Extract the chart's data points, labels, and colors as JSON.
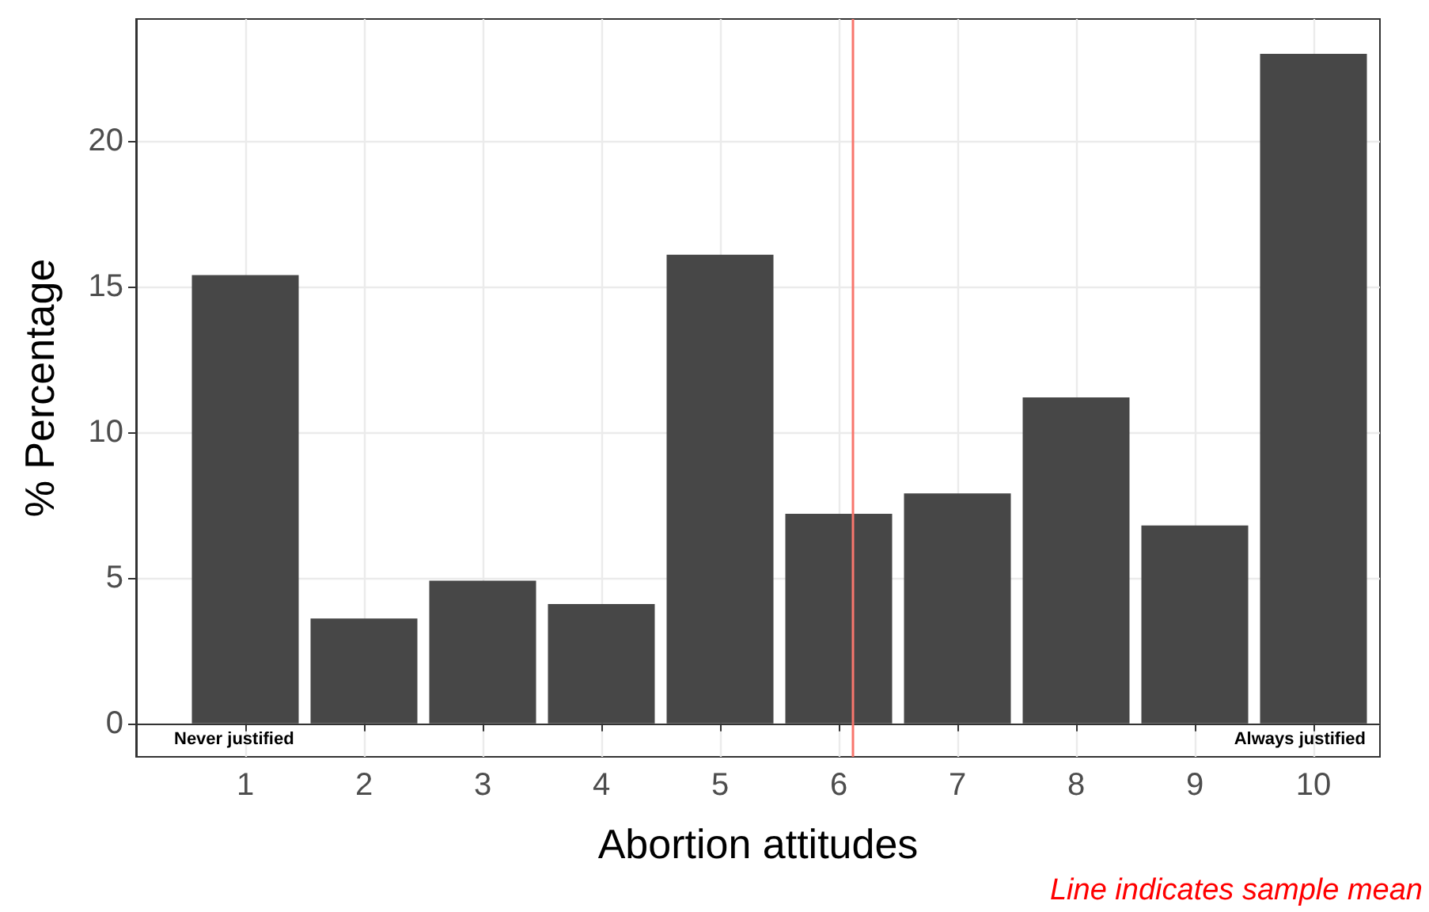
{
  "chart_data": {
    "type": "bar",
    "xlabel": "Abortion attitudes",
    "ylabel": "% Percentage",
    "x": [
      1,
      2,
      3,
      4,
      5,
      6,
      7,
      8,
      9,
      10
    ],
    "values": [
      15.4,
      3.6,
      4.9,
      4.1,
      16.1,
      7.2,
      7.9,
      11.2,
      6.8,
      23.0
    ],
    "color": "#474747",
    "xlim": [
      0.08,
      10.56
    ],
    "xticks": [
      1,
      2,
      3,
      4,
      5,
      6,
      7,
      8,
      9,
      10
    ],
    "ylim": [
      -1.15,
      24.2
    ],
    "yticks": [
      0,
      5,
      10,
      15,
      20
    ],
    "grid": true,
    "ref_lines": [
      {
        "axis": "x",
        "value": 6.12,
        "color": "#f8766d"
      }
    ],
    "annotations": [
      "Never justified",
      "Always justified",
      "Line indicates sample mean"
    ]
  }
}
